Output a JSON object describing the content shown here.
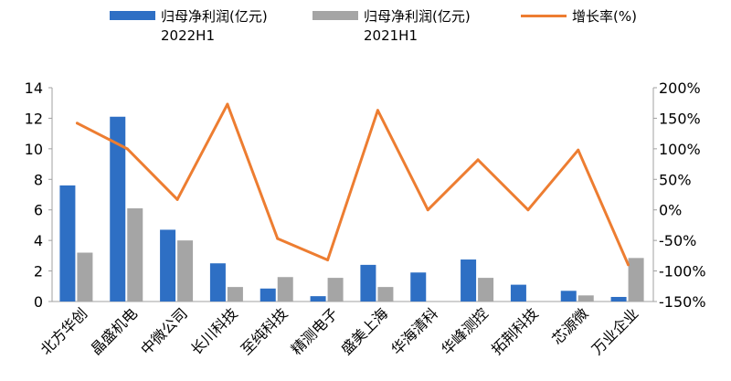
{
  "chart_data": {
    "type": "bar+line",
    "categories": [
      "北方华创",
      "晶盛机电",
      "中微公司",
      "长川科技",
      "至纯科技",
      "精测电子",
      "盛美上海",
      "华海清科",
      "华峰测控",
      "拓荆科技",
      "芯源微",
      "万业企业"
    ],
    "series": [
      {
        "name": "归母净利润(亿元)2022H1",
        "type": "bar",
        "axis": "left",
        "color": "#2E6FC4",
        "values": [
          7.6,
          12.1,
          4.7,
          2.5,
          0.85,
          0.35,
          2.4,
          1.9,
          2.75,
          1.1,
          0.7,
          0.3
        ]
      },
      {
        "name": "归母净利润(亿元)2021H1",
        "type": "bar",
        "axis": "left",
        "color": "#A5A5A5",
        "values": [
          3.2,
          6.1,
          4.0,
          0.95,
          1.6,
          1.55,
          0.95,
          null,
          1.55,
          null,
          0.4,
          2.85
        ]
      },
      {
        "name": "增长率(%)",
        "type": "line",
        "axis": "right",
        "color": "#ED7D31",
        "values": [
          142,
          100,
          17,
          173,
          -47,
          -82,
          163,
          0,
          82,
          0,
          98,
          -90
        ]
      }
    ],
    "legend": [
      {
        "line1": "归母净利润(亿元)",
        "line2": "2022H1"
      },
      {
        "line1": "归母净利润(亿元)",
        "line2": "2021H1"
      },
      {
        "line1": "增长率(%)",
        "line2": ""
      }
    ],
    "legend_position": "top",
    "left_axis": {
      "ylim": [
        0,
        14
      ],
      "ticks": [
        "0",
        "2",
        "4",
        "6",
        "8",
        "10",
        "12",
        "14"
      ]
    },
    "right_axis": {
      "ylim": [
        -150,
        200
      ],
      "ticks": [
        "-150%",
        "-100%",
        "-50%",
        "0%",
        "50%",
        "100%",
        "150%",
        "200%"
      ]
    },
    "grid": false
  }
}
